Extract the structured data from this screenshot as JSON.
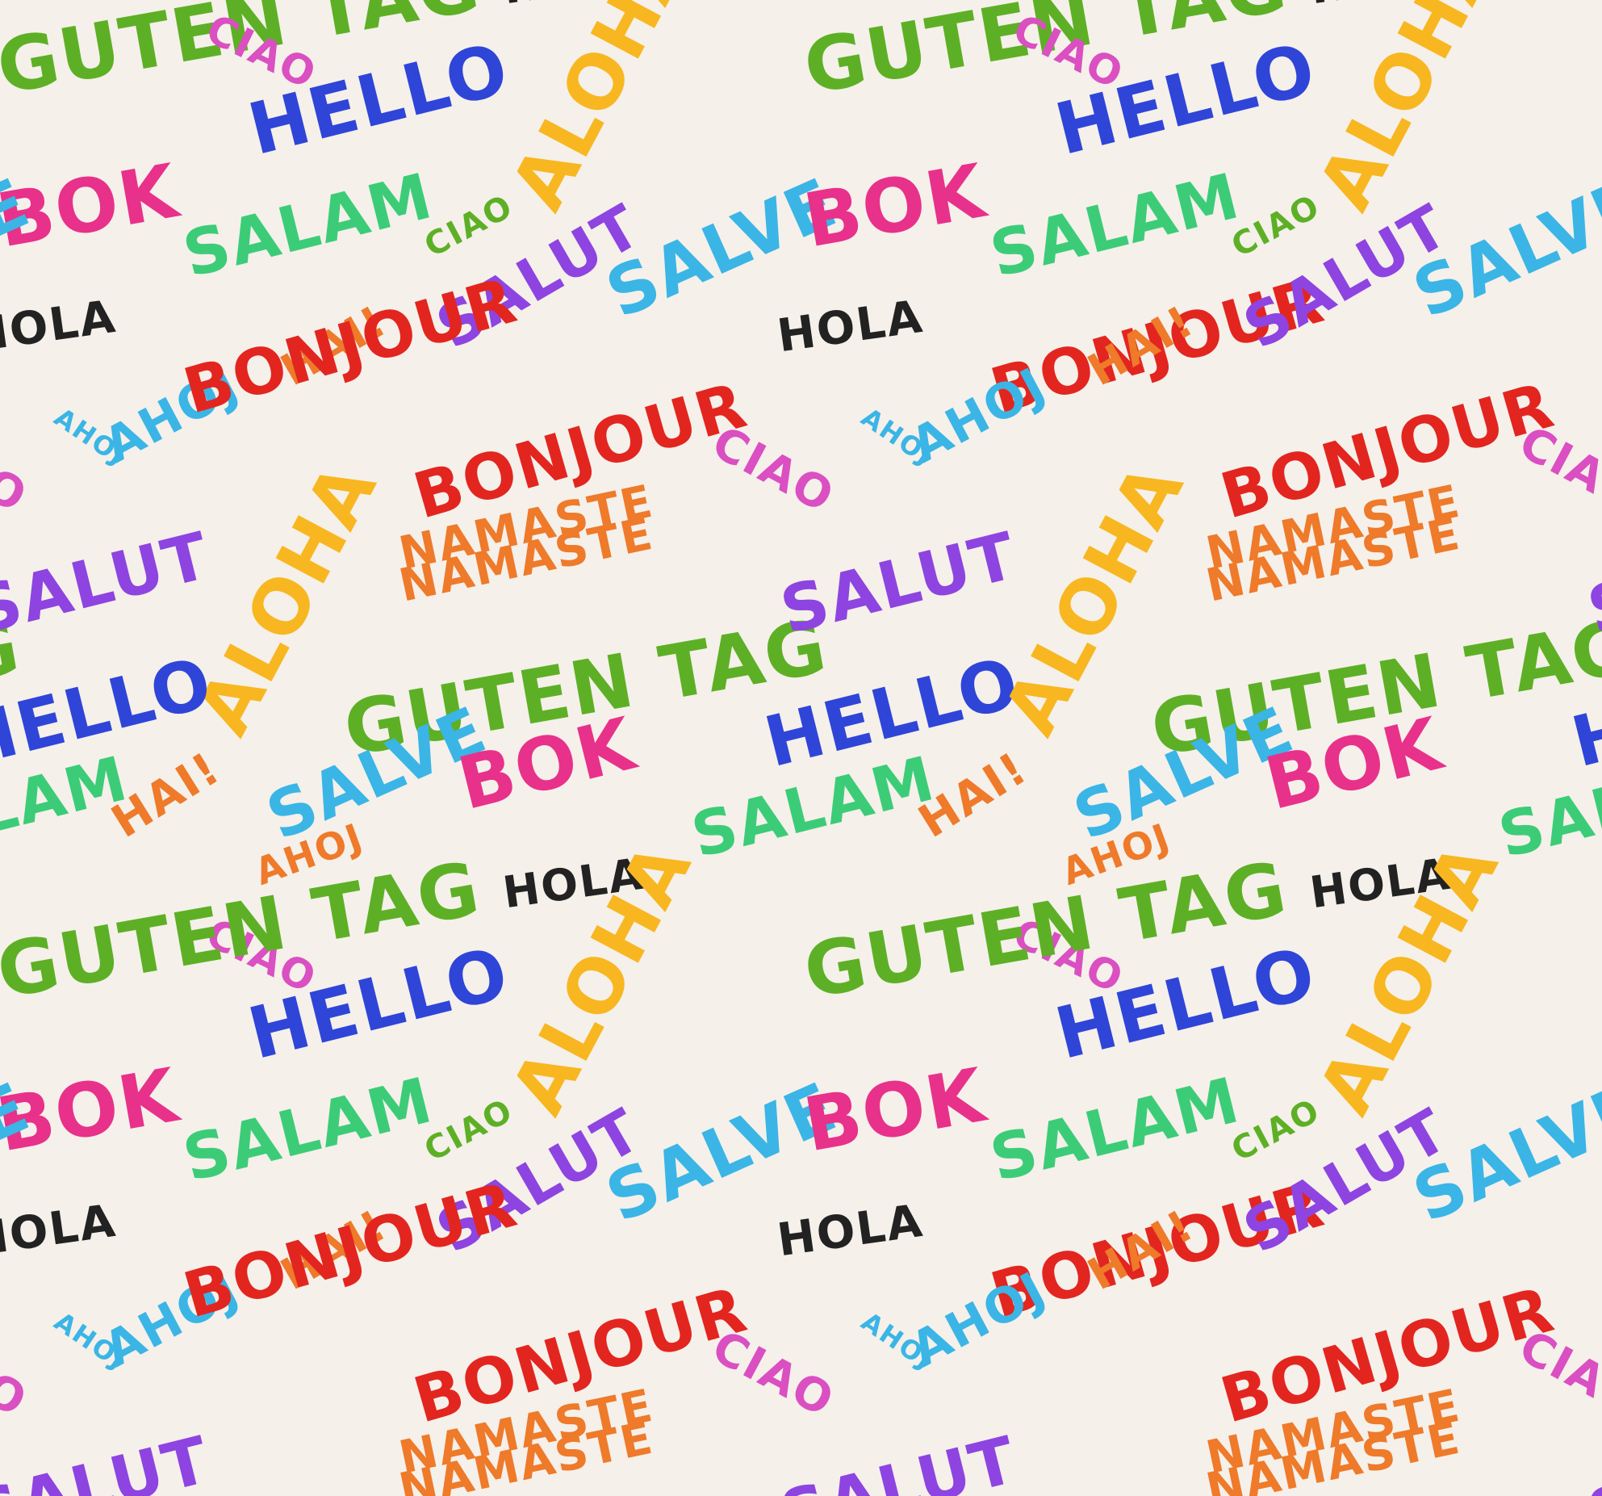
{
  "background_color": "#f5f0ea",
  "palette": {
    "green": "#5db025",
    "blue": "#2f45d8",
    "pink": "#e8318a",
    "teal_green": "#3ccc78",
    "purple": "#8e44e0",
    "yellow": "#f8b720",
    "light_blue": "#3ab5e6",
    "orange": "#ee7a2a",
    "red": "#e3251f",
    "magenta": "#da4fc1",
    "black": "#222222"
  },
  "words": [
    {
      "text": "GUTEN TAG",
      "color": "green"
    },
    {
      "text": "HELLO",
      "color": "blue"
    },
    {
      "text": "BOK",
      "color": "pink"
    },
    {
      "text": "SALAM",
      "color": "teal_green"
    },
    {
      "text": "SALUT",
      "color": "purple"
    },
    {
      "text": "ALOHA",
      "color": "yellow"
    },
    {
      "text": "CIAO",
      "color": "green"
    },
    {
      "text": "SALVE",
      "color": "light_blue"
    },
    {
      "text": "NAMASTE",
      "color": "orange"
    },
    {
      "text": "HOLA",
      "color": "black"
    },
    {
      "text": "AHOJ",
      "color": "light_blue"
    },
    {
      "text": "HAI!",
      "color": "orange"
    },
    {
      "text": "BONJOUR",
      "color": "red"
    },
    {
      "text": "CIAO",
      "color": "magenta"
    },
    {
      "text": "AHOJ",
      "color": "light_blue"
    },
    {
      "text": "ALOHA",
      "color": "yellow"
    },
    {
      "text": "NAMASTE",
      "color": "orange"
    },
    {
      "text": "GUTEN TAG",
      "color": "green"
    },
    {
      "text": "SALUT",
      "color": "purple"
    },
    {
      "text": "HELLO",
      "color": "blue"
    },
    {
      "text": "SALVE",
      "color": "light_blue"
    },
    {
      "text": "BOK",
      "color": "pink"
    },
    {
      "text": "SALAM",
      "color": "teal_green"
    },
    {
      "text": "HOLA",
      "color": "black"
    },
    {
      "text": "HAI!",
      "color": "orange"
    },
    {
      "text": "CIAO",
      "color": "magenta"
    },
    {
      "text": "AHOJ",
      "color": "orange"
    },
    {
      "text": "BONJOUR",
      "color": "red"
    }
  ]
}
